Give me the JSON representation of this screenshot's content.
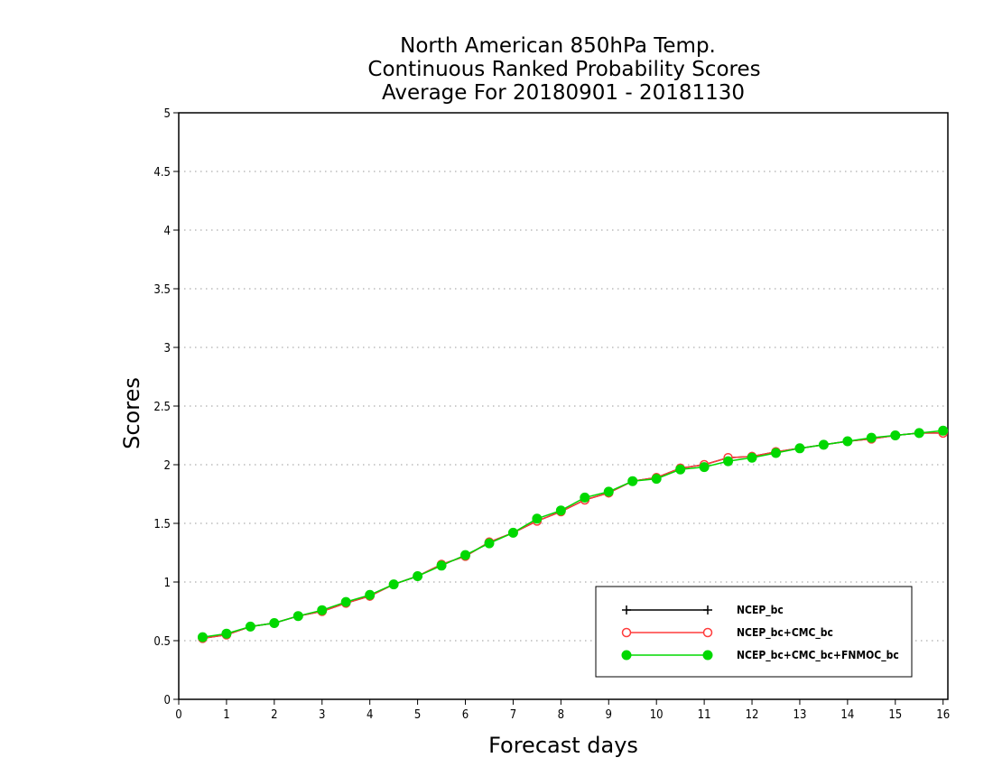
{
  "chart_data": {
    "type": "line",
    "title": [
      "North American 850hPa Temp.",
      "Continuous Ranked Probability Scores",
      "Average For 20180901 - 20181130"
    ],
    "xlabel": "Forecast days",
    "ylabel": "Scores",
    "xlim": [
      0,
      16.1
    ],
    "ylim": [
      0,
      5
    ],
    "xticks": [
      0,
      1,
      2,
      3,
      4,
      5,
      6,
      7,
      8,
      9,
      10,
      11,
      12,
      13,
      14,
      15,
      16
    ],
    "yticks": [
      0,
      0.5,
      1,
      1.5,
      2,
      2.5,
      3,
      3.5,
      4,
      4.5,
      5
    ],
    "ytick_labels": [
      "0",
      "0.5",
      "1",
      "1.5",
      "2",
      "2.5",
      "3",
      "3.5",
      "4",
      "4.5",
      "5"
    ],
    "grid": "horizontal dotted",
    "legend_position": "bottom-right",
    "x": [
      0.5,
      1,
      1.5,
      2,
      2.5,
      3,
      3.5,
      4,
      4.5,
      5,
      5.5,
      6,
      6.5,
      7,
      7.5,
      8,
      8.5,
      9,
      9.5,
      10,
      10.5,
      11,
      11.5,
      12,
      12.5,
      13,
      13.5,
      14,
      14.5,
      15,
      15.5,
      16
    ],
    "series": [
      {
        "name": "NCEP_bc",
        "color": "#000000",
        "marker": "plus",
        "values": [
          0.52,
          0.55,
          0.62,
          0.65,
          0.71,
          0.75,
          0.82,
          0.88,
          0.98,
          1.05,
          1.15,
          1.22,
          1.34,
          1.42,
          1.52,
          1.6,
          1.7,
          1.76,
          1.86,
          1.89,
          1.97,
          2.0,
          2.06,
          2.07,
          2.11,
          2.14,
          2.17,
          2.2,
          2.22,
          2.25,
          2.27,
          2.27
        ]
      },
      {
        "name": "NCEP_bc+CMC_bc",
        "color": "#ff3b3b",
        "marker": "open-circle",
        "values": [
          0.52,
          0.55,
          0.62,
          0.65,
          0.71,
          0.75,
          0.82,
          0.88,
          0.98,
          1.05,
          1.15,
          1.22,
          1.34,
          1.42,
          1.52,
          1.6,
          1.7,
          1.76,
          1.86,
          1.89,
          1.97,
          2.0,
          2.06,
          2.07,
          2.11,
          2.14,
          2.17,
          2.2,
          2.22,
          2.25,
          2.27,
          2.27
        ]
      },
      {
        "name": "NCEP_bc+CMC_bc+FNMOC_bc",
        "color": "#00d800",
        "marker": "filled-circle",
        "values": [
          0.53,
          0.56,
          0.62,
          0.65,
          0.71,
          0.76,
          0.83,
          0.89,
          0.98,
          1.05,
          1.14,
          1.23,
          1.33,
          1.42,
          1.54,
          1.61,
          1.72,
          1.77,
          1.86,
          1.88,
          1.96,
          1.98,
          2.03,
          2.06,
          2.1,
          2.14,
          2.17,
          2.2,
          2.23,
          2.25,
          2.27,
          2.29
        ]
      }
    ]
  }
}
